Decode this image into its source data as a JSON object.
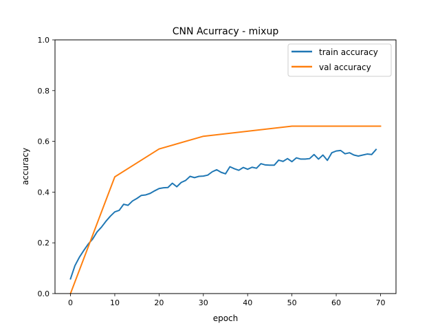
{
  "chart_data": {
    "type": "line",
    "title": "CNN Acurracy - mixup",
    "xlabel": "epoch",
    "ylabel": "accuracy",
    "xlim": [
      -3.5,
      73.5
    ],
    "ylim": [
      0.0,
      1.0
    ],
    "xticks": [
      "0",
      "10",
      "20",
      "30",
      "40",
      "50",
      "60",
      "70"
    ],
    "xtick_values": [
      0,
      10,
      20,
      30,
      40,
      50,
      60,
      70
    ],
    "yticks": [
      "0.0",
      "0.2",
      "0.4",
      "0.6",
      "0.8",
      "1.0"
    ],
    "ytick_values": [
      0.0,
      0.2,
      0.4,
      0.6,
      0.8,
      1.0
    ],
    "grid": false,
    "legend_position": "top-right",
    "series": [
      {
        "name": "train accuracy",
        "color": "#1f77b4",
        "x": [
          0,
          1,
          2,
          3,
          4,
          5,
          6,
          7,
          8,
          9,
          10,
          11,
          12,
          13,
          14,
          15,
          16,
          17,
          18,
          19,
          20,
          21,
          22,
          23,
          24,
          25,
          26,
          27,
          28,
          29,
          30,
          31,
          32,
          33,
          34,
          35,
          36,
          37,
          38,
          39,
          40,
          41,
          42,
          43,
          44,
          45,
          46,
          47,
          48,
          49,
          50,
          51,
          52,
          53,
          54,
          55,
          56,
          57,
          58,
          59,
          60,
          61,
          62,
          63,
          64,
          65,
          66,
          67,
          68,
          69
        ],
        "values": [
          0.058,
          0.11,
          0.143,
          0.17,
          0.195,
          0.215,
          0.243,
          0.262,
          0.285,
          0.305,
          0.322,
          0.328,
          0.352,
          0.348,
          0.365,
          0.375,
          0.387,
          0.389,
          0.395,
          0.405,
          0.414,
          0.417,
          0.418,
          0.435,
          0.421,
          0.438,
          0.446,
          0.462,
          0.457,
          0.462,
          0.463,
          0.467,
          0.48,
          0.488,
          0.478,
          0.472,
          0.5,
          0.492,
          0.486,
          0.497,
          0.49,
          0.498,
          0.494,
          0.512,
          0.507,
          0.506,
          0.506,
          0.526,
          0.521,
          0.532,
          0.52,
          0.535,
          0.53,
          0.53,
          0.532,
          0.548,
          0.53,
          0.546,
          0.525,
          0.555,
          0.562,
          0.564,
          0.551,
          0.555,
          0.546,
          0.542,
          0.546,
          0.55,
          0.548,
          0.568
        ]
      },
      {
        "name": "val accuracy",
        "color": "#ff7f0e",
        "x": [
          0,
          10,
          20,
          30,
          50,
          70
        ],
        "values": [
          0.0,
          0.46,
          0.57,
          0.62,
          0.66,
          0.66
        ]
      }
    ]
  }
}
